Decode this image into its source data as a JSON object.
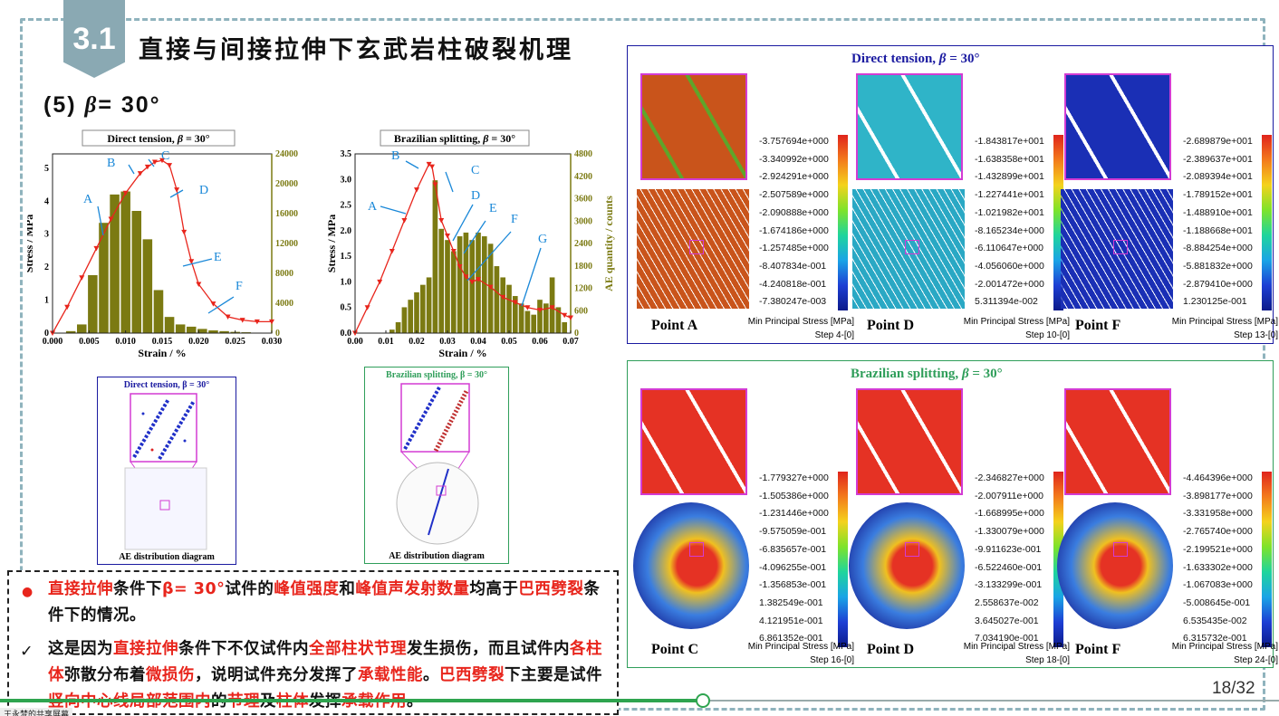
{
  "slide": {
    "section_number": "3.1",
    "title": "直接与间接拉伸下玄武岩柱破裂机理",
    "subtitle_prefix": "(5) ",
    "subtitle_beta": "β",
    "subtitle_suffix": "= 30°",
    "page_number": "18/32",
    "watermark": "王永梦的共享屏幕"
  },
  "charts": {
    "left": {
      "title_prefix": "Direct tension, ",
      "title_beta": "β",
      "title_suffix": " = 30°",
      "xlabel": "Strain / %",
      "ylabel": "Stress / MPa",
      "y2label": "AE quantity / counts",
      "x_ticks": [
        "0.000",
        "0.005",
        "0.010",
        "0.015",
        "0.020",
        "0.025",
        "0.030"
      ],
      "y_ticks": [
        "0",
        "1",
        "2",
        "3",
        "4",
        "5"
      ],
      "y2_ticks": [
        "0",
        "4000",
        "8000",
        "12000",
        "16000",
        "20000",
        "24000"
      ],
      "points": [
        "A",
        "B",
        "C",
        "D",
        "E",
        "F"
      ]
    },
    "right": {
      "title_prefix": "Brazilian splitting, ",
      "title_beta": "β",
      "title_suffix": " = 30°",
      "xlabel": "Strain / %",
      "ylabel": "Stress / MPa",
      "y2label": "AE quantity / counts",
      "x_ticks": [
        "0.00",
        "0.01",
        "0.02",
        "0.03",
        "0.04",
        "0.05",
        "0.06",
        "0.07"
      ],
      "y_ticks": [
        "0.0",
        "0.5",
        "1.0",
        "1.5",
        "2.0",
        "2.5",
        "3.0",
        "3.5"
      ],
      "y2_ticks": [
        "0",
        "600",
        "1200",
        "1800",
        "2400",
        "3000",
        "3600",
        "4200",
        "4800"
      ],
      "points": [
        "A",
        "B",
        "C",
        "D",
        "E",
        "F",
        "G"
      ]
    }
  },
  "chart_data": [
    {
      "type": "bar",
      "title": "Direct tension, β = 30°",
      "xlabel": "Strain / %",
      "ylabel": "Stress / MPa",
      "y2label": "AE quantity / counts",
      "xlim": [
        0,
        0.03
      ],
      "ylim": [
        0,
        5.5
      ],
      "y2lim": [
        0,
        24000
      ],
      "series": [
        {
          "kind": "bar",
          "x": [
            0.0025,
            0.004,
            0.0055,
            0.007,
            0.0085,
            0.01,
            0.0115,
            0.013,
            0.0145,
            0.016,
            0.0175,
            0.019,
            0.0205,
            0.022,
            0.0235,
            0.025,
            0.0265,
            0.028
          ],
          "values": [
            300,
            1200,
            7800,
            14800,
            18600,
            19000,
            16400,
            12600,
            5800,
            2200,
            1200,
            900,
            600,
            400,
            300,
            200,
            150,
            100
          ]
        },
        {
          "kind": "line",
          "x": [
            0.0,
            0.002,
            0.004,
            0.006,
            0.008,
            0.01,
            0.012,
            0.013,
            0.014,
            0.015,
            0.016,
            0.017,
            0.018,
            0.019,
            0.02,
            0.022,
            0.024,
            0.026,
            0.028,
            0.03
          ],
          "values": [
            0.0,
            0.8,
            1.7,
            2.6,
            3.5,
            4.3,
            4.9,
            5.1,
            5.25,
            5.3,
            5.15,
            4.4,
            3.1,
            2.2,
            1.5,
            0.9,
            0.5,
            0.4,
            0.35,
            0.35
          ]
        }
      ]
    },
    {
      "type": "bar",
      "title": "Brazilian splitting, β = 30°",
      "xlabel": "Strain / %",
      "ylabel": "Stress / MPa",
      "y2label": "AE quantity / counts",
      "xlim": [
        0,
        0.07
      ],
      "ylim": [
        0,
        3.5
      ],
      "y2lim": [
        0,
        4800
      ],
      "series": [
        {
          "kind": "bar",
          "x": [
            0.012,
            0.014,
            0.016,
            0.018,
            0.02,
            0.022,
            0.024,
            0.026,
            0.028,
            0.03,
            0.032,
            0.034,
            0.036,
            0.038,
            0.04,
            0.042,
            0.044,
            0.046,
            0.048,
            0.05,
            0.052,
            0.054,
            0.056,
            0.058,
            0.06,
            0.062,
            0.064,
            0.066,
            0.068
          ],
          "values": [
            100,
            300,
            700,
            900,
            1100,
            1300,
            1500,
            4100,
            2800,
            2500,
            2200,
            2600,
            2700,
            2500,
            2700,
            2600,
            2400,
            1800,
            1500,
            1300,
            1000,
            800,
            600,
            500,
            900,
            800,
            1500,
            700,
            300
          ]
        },
        {
          "kind": "line",
          "x": [
            0.0,
            0.004,
            0.008,
            0.012,
            0.016,
            0.02,
            0.024,
            0.025,
            0.026,
            0.028,
            0.03,
            0.032,
            0.034,
            0.036,
            0.038,
            0.04,
            0.044,
            0.048,
            0.052,
            0.056,
            0.06,
            0.064,
            0.068,
            0.07
          ],
          "values": [
            0.0,
            0.5,
            1.0,
            1.6,
            2.2,
            2.8,
            3.3,
            3.25,
            2.9,
            2.2,
            1.9,
            1.6,
            1.3,
            1.1,
            1.0,
            1.05,
            0.9,
            0.7,
            0.6,
            0.5,
            0.45,
            0.5,
            0.35,
            0.3
          ]
        }
      ]
    }
  ],
  "ae_diagrams": {
    "left": {
      "title": "Direct tension, β = 30°",
      "caption": "AE distribution diagram"
    },
    "right": {
      "title": "Brazilian splitting, β = 30°",
      "caption": "AE distribution diagram"
    }
  },
  "panels": {
    "direct": {
      "title_prefix": "Direct tension, ",
      "title_beta": "β",
      "title_suffix": " = 30°",
      "cols": [
        {
          "point": "Point A",
          "legend": [
            "-3.757694e+000",
            "-3.340992e+000",
            "-2.924291e+000",
            "-2.507589e+000",
            "-2.090888e+000",
            "-1.674186e+000",
            "-1.257485e+000",
            "-8.407834e-001",
            "-4.240818e-001",
            "-7.380247e-003"
          ],
          "meta1": "Min Principal Stress [MPa]",
          "meta2": "Step 4-[0]"
        },
        {
          "point": "Point D",
          "legend": [
            "-1.843817e+001",
            "-1.638358e+001",
            "-1.432899e+001",
            "-1.227441e+001",
            "-1.021982e+001",
            "-8.165234e+000",
            "-6.110647e+000",
            "-4.056060e+000",
            "-2.001472e+000",
            "5.311394e-002"
          ],
          "meta1": "Min Principal Stress [MPa]",
          "meta2": "Step 10-[0]"
        },
        {
          "point": "Point F",
          "legend": [
            "-2.689879e+001",
            "-2.389637e+001",
            "-2.089394e+001",
            "-1.789152e+001",
            "-1.488910e+001",
            "-1.188668e+001",
            "-8.884254e+000",
            "-5.881832e+000",
            "-2.879410e+000",
            "1.230125e-001"
          ],
          "meta1": "Min Principal Stress [MPa]",
          "meta2": "Step 13-[0]"
        }
      ]
    },
    "brazil": {
      "title_prefix": "Brazilian splitting, ",
      "title_beta": "β",
      "title_suffix": " = 30°",
      "cols": [
        {
          "point": "Point C",
          "legend": [
            "-1.779327e+000",
            "-1.505386e+000",
            "-1.231446e+000",
            "-9.575059e-001",
            "-6.835657e-001",
            "-4.096255e-001",
            "-1.356853e-001",
            "1.382549e-001",
            "4.121951e-001",
            "6.861352e-001"
          ],
          "meta1": "Min Principal Stress [MPa]",
          "meta2": "Step 16-[0]"
        },
        {
          "point": "Point D",
          "legend": [
            "-2.346827e+000",
            "-2.007911e+000",
            "-1.668995e+000",
            "-1.330079e+000",
            "-9.911623e-001",
            "-6.522460e-001",
            "-3.133299e-001",
            "2.558637e-002",
            "3.645027e-001",
            "7.034190e-001"
          ],
          "meta1": "Min Principal Stress [MPa]",
          "meta2": "Step 18-[0]"
        },
        {
          "point": "Point F",
          "legend": [
            "-4.464396e+000",
            "-3.898177e+000",
            "-3.331958e+000",
            "-2.765740e+000",
            "-2.199521e+000",
            "-1.633302e+000",
            "-1.067083e+000",
            "-5.008645e-001",
            "6.535435e-002",
            "6.315732e-001"
          ],
          "meta1": "Min Principal Stress [MPa]",
          "meta2": "Step 24-[0]"
        }
      ]
    }
  },
  "notes": {
    "bullet": "●",
    "check": "✓",
    "p1": [
      {
        "t": "直接拉伸",
        "red": true
      },
      {
        "t": "条件下",
        "red": false
      },
      {
        "t": "β= 30°",
        "red": true
      },
      {
        "t": "试件的",
        "red": false
      },
      {
        "t": "峰值强度",
        "red": true
      },
      {
        "t": "和",
        "red": false
      },
      {
        "t": "峰值声发射数量",
        "red": true
      },
      {
        "t": "均高于",
        "red": false
      },
      {
        "t": "巴西劈裂",
        "red": true
      },
      {
        "t": "条件下的情况。",
        "red": false
      }
    ],
    "p2": [
      {
        "t": "这是因为",
        "red": false
      },
      {
        "t": "直接拉伸",
        "red": true
      },
      {
        "t": "条件下不仅试件内",
        "red": false
      },
      {
        "t": "全部柱状节理",
        "red": true
      },
      {
        "t": "发生损伤，而且试件内",
        "red": false
      },
      {
        "t": "各柱体",
        "red": true
      },
      {
        "t": "弥散分布着",
        "red": false
      },
      {
        "t": "微损伤",
        "red": true
      },
      {
        "t": "，说明试件充分发挥了",
        "red": false
      },
      {
        "t": "承载性能",
        "red": true
      },
      {
        "t": "。",
        "red": false
      },
      {
        "t": "巴西劈裂",
        "red": true
      },
      {
        "t": "下主要是试件",
        "red": false
      },
      {
        "t": "竖向中心线局部范围内",
        "red": true
      },
      {
        "t": "的",
        "red": false
      },
      {
        "t": "节理",
        "red": true
      },
      {
        "t": "及",
        "red": false
      },
      {
        "t": "柱体",
        "red": true
      },
      {
        "t": "发挥",
        "red": false
      },
      {
        "t": "承载作用",
        "red": true
      },
      {
        "t": "。",
        "red": false
      }
    ]
  }
}
